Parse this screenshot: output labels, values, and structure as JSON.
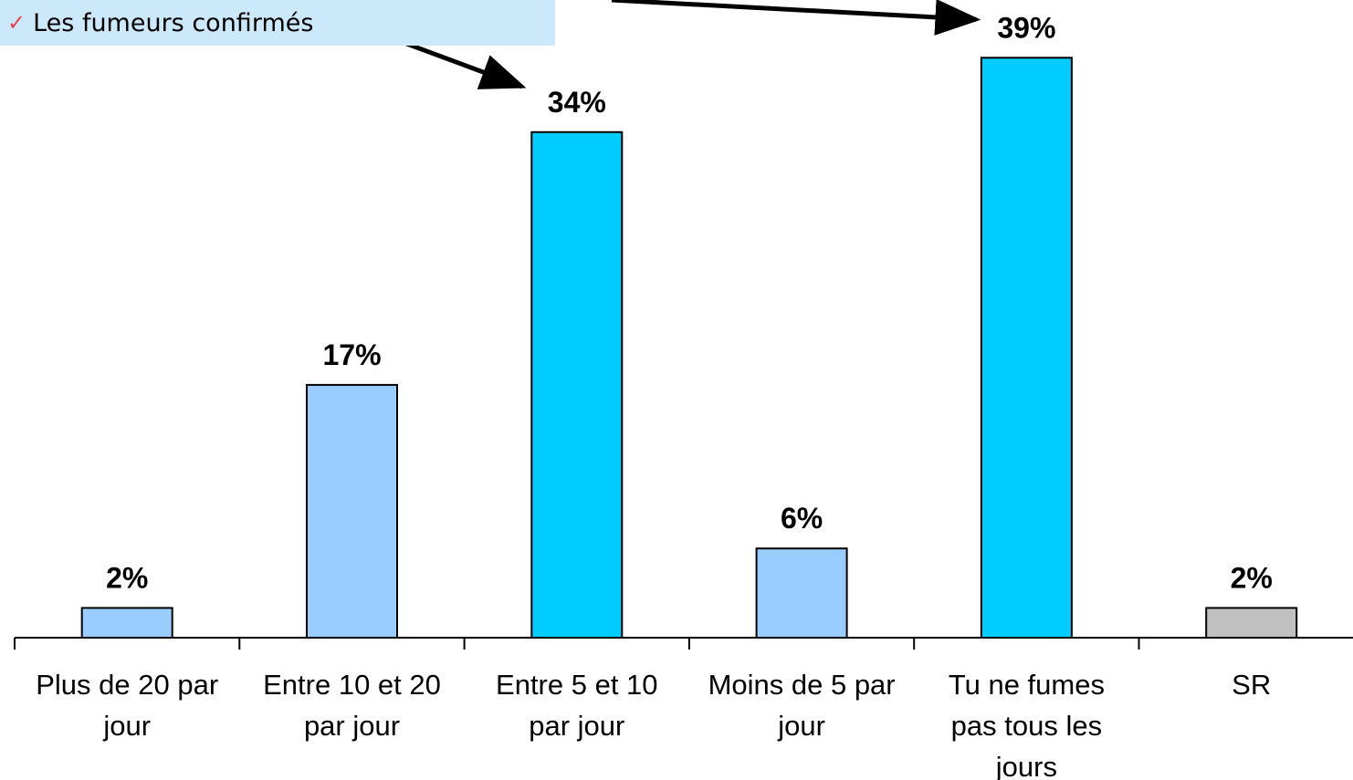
{
  "callout": {
    "check_glyph": "✓",
    "text": "Les fumeurs confirmés"
  },
  "chart_data": {
    "type": "bar",
    "title": "",
    "xlabel": "",
    "ylabel": "",
    "ylim": [
      0,
      40
    ],
    "grid": false,
    "legend": "none",
    "categories": [
      [
        "Plus de 20 par",
        "jour"
      ],
      [
        "Entre 10 et 20",
        "par jour"
      ],
      [
        "Entre 5 et 10",
        "par jour"
      ],
      [
        "Moins de 5 par",
        "jour"
      ],
      [
        "Tu ne fumes",
        "pas tous les",
        "jours"
      ],
      [
        "SR"
      ]
    ],
    "values": [
      2,
      17,
      34,
      6,
      39,
      2
    ],
    "data_labels": [
      "2%",
      "17%",
      "34%",
      "6%",
      "39%",
      "2%"
    ],
    "bar_colors": [
      "#99ccff",
      "#99ccff",
      "#00ccff",
      "#99ccff",
      "#00ccff",
      "#c0c0c0"
    ],
    "highlighted_categories": [
      "Entre 5 et 10 par jour",
      "Tu ne fumes pas tous les jours"
    ]
  }
}
